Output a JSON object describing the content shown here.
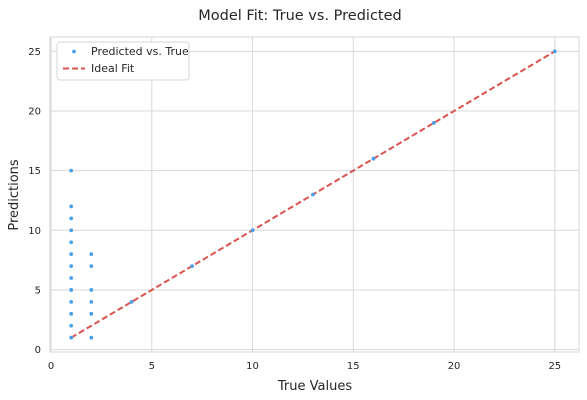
{
  "chart_data": {
    "type": "scatter",
    "title": "Model Fit: True vs. Predicted",
    "xlabel": "True Values",
    "ylabel": "Predictions",
    "xlim": [
      -0.05,
      26.2
    ],
    "ylim": [
      -0.2,
      26.2
    ],
    "xticks": [
      0,
      5,
      10,
      15,
      20,
      25
    ],
    "yticks": [
      0,
      5,
      10,
      15,
      20,
      25
    ],
    "grid": true,
    "legend_position": "top-left",
    "series": [
      {
        "name": "Predicted vs. True",
        "kind": "scatter",
        "color": "#4a9fe8",
        "points": [
          [
            1,
            1
          ],
          [
            1,
            2
          ],
          [
            1,
            3
          ],
          [
            1,
            4
          ],
          [
            1,
            5
          ],
          [
            1,
            6
          ],
          [
            1,
            7
          ],
          [
            1,
            8
          ],
          [
            1,
            9
          ],
          [
            1,
            10
          ],
          [
            1,
            11
          ],
          [
            1,
            12
          ],
          [
            1,
            15
          ],
          [
            2,
            1
          ],
          [
            2,
            3
          ],
          [
            2,
            4
          ],
          [
            2,
            5
          ],
          [
            2,
            7
          ],
          [
            2,
            8
          ],
          [
            4,
            4
          ],
          [
            7,
            7
          ],
          [
            10,
            10
          ],
          [
            13,
            13
          ],
          [
            16,
            16
          ],
          [
            19,
            19
          ],
          [
            25,
            25
          ]
        ]
      },
      {
        "name": "Ideal Fit",
        "kind": "line",
        "style": "dashed",
        "color": "#d9534f",
        "points": [
          [
            1,
            1
          ],
          [
            25,
            25
          ]
        ]
      }
    ]
  }
}
